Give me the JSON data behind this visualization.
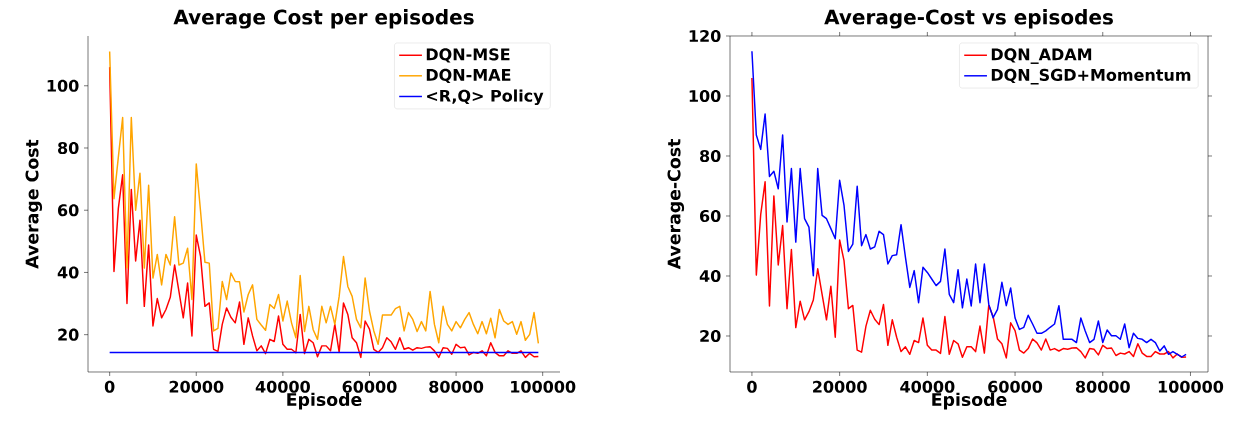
{
  "chart_data": [
    {
      "type": "line",
      "title": "Average Cost per episodes",
      "xlabel": "Episode",
      "ylabel": "Average Cost",
      "x": [
        0,
        1000,
        2000,
        3000,
        4000,
        5000,
        6000,
        7000,
        8000,
        9000,
        10000,
        11000,
        12000,
        13000,
        14000,
        15000,
        16000,
        17000,
        18000,
        19000,
        20000,
        21000,
        22000,
        23000,
        24000,
        25000,
        26000,
        27000,
        28000,
        29000,
        30000,
        31000,
        32000,
        33000,
        34000,
        35000,
        36000,
        37000,
        38000,
        39000,
        40000,
        41000,
        42000,
        43000,
        44000,
        45000,
        46000,
        47000,
        48000,
        49000,
        50000,
        51000,
        52000,
        53000,
        54000,
        55000,
        56000,
        57000,
        58000,
        59000,
        60000,
        61000,
        62000,
        63000,
        64000,
        65000,
        66000,
        67000,
        68000,
        69000,
        70000,
        71000,
        72000,
        73000,
        74000,
        75000,
        76000,
        77000,
        78000,
        79000,
        80000,
        81000,
        82000,
        83000,
        84000,
        85000,
        86000,
        87000,
        88000,
        89000,
        90000,
        91000,
        92000,
        93000,
        94000,
        95000,
        96000,
        97000,
        98000,
        99000
      ],
      "series": [
        {
          "name": "DQN-MSE",
          "color": "#ff0000",
          "values": [
            106,
            40.3,
            60.5,
            71.4,
            30,
            66.7,
            43.7,
            56.8,
            29.1,
            48.8,
            22.8,
            31.6,
            25.4,
            28.1,
            32,
            42.4,
            33.9,
            25.4,
            36.6,
            19.6,
            52,
            45.1,
            29.1,
            30.2,
            15.3,
            14.6,
            23.3,
            28.6,
            25.6,
            23.8,
            30.5,
            16.9,
            25.4,
            19.6,
            14.8,
            16.4,
            13.9,
            18.5,
            17.8,
            26,
            16.9,
            15.3,
            15.3,
            14.2,
            26.5,
            13.9,
            18.5,
            17.4,
            12.9,
            16.4,
            16.4,
            14.8,
            23.3,
            14.3,
            30.2,
            26.5,
            19,
            17.4,
            12.7,
            24.4,
            21.8,
            15.3,
            14.3,
            15.8,
            19,
            17.7,
            15.3,
            19,
            15.3,
            15.8,
            15,
            15.8,
            15.6,
            16,
            16.1,
            14.8,
            12.7,
            15.8,
            15.6,
            13.7,
            16.9,
            15.8,
            16,
            13.5,
            14.3,
            14,
            14.8,
            13.2,
            17.4,
            14.3,
            13.2,
            13.2,
            14.8,
            14,
            14,
            14.8,
            12.7,
            14,
            12.9,
            13
          ]
        },
        {
          "name": "DQN-MAE",
          "color": "#ffa500",
          "values": [
            111,
            63.7,
            77,
            89.8,
            41.4,
            89.8,
            60,
            71.9,
            41.4,
            68,
            38.2,
            45.8,
            36,
            45.8,
            42.4,
            57.9,
            42.4,
            43,
            47.8,
            31.3,
            74.9,
            59.5,
            43.3,
            43,
            21.2,
            22,
            37.1,
            31.3,
            39.8,
            37.1,
            37,
            27.3,
            32.9,
            36,
            24.9,
            23.1,
            21.4,
            29.7,
            28.4,
            32.9,
            24.4,
            30.8,
            23.8,
            19,
            39,
            21,
            29.1,
            21.6,
            18.5,
            29.1,
            23.8,
            29.1,
            23.3,
            32.3,
            45.1,
            35.5,
            32.3,
            24.9,
            22.2,
            38.2,
            27.6,
            21.2,
            16.9,
            26.3,
            26.3,
            26.3,
            28.4,
            29.1,
            21.2,
            27.1,
            24.9,
            21,
            24.2,
            21.2,
            33.9,
            23.3,
            17.4,
            29.1,
            23.3,
            21.2,
            24.2,
            22.2,
            24.9,
            27.1,
            23.3,
            20.3,
            24.2,
            20.3,
            25.3,
            19,
            28.1,
            24.4,
            23.3,
            24.2,
            20.1,
            24.2,
            18.2,
            20.1,
            27.1,
            17.2
          ]
        },
        {
          "name": "<R,Q> Policy",
          "color": "#0000ff",
          "x": [
            0,
            99000
          ],
          "values": [
            14.3,
            14.3
          ]
        }
      ],
      "xlim": [
        -5000,
        104000
      ],
      "ylim": [
        8,
        116
      ],
      "xticks": [
        0,
        20000,
        40000,
        60000,
        80000,
        100000
      ],
      "yticks": [
        20,
        40,
        60,
        80,
        100
      ],
      "legend": "top right",
      "grid": false
    },
    {
      "type": "line",
      "title": "Average-Cost vs episodes",
      "xlabel": "Episode",
      "ylabel": "Average-Cost",
      "x": [
        0,
        1000,
        2000,
        3000,
        4000,
        5000,
        6000,
        7000,
        8000,
        9000,
        10000,
        11000,
        12000,
        13000,
        14000,
        15000,
        16000,
        17000,
        18000,
        19000,
        20000,
        21000,
        22000,
        23000,
        24000,
        25000,
        26000,
        27000,
        28000,
        29000,
        30000,
        31000,
        32000,
        33000,
        34000,
        35000,
        36000,
        37000,
        38000,
        39000,
        40000,
        41000,
        42000,
        43000,
        44000,
        45000,
        46000,
        47000,
        48000,
        49000,
        50000,
        51000,
        52000,
        53000,
        54000,
        55000,
        56000,
        57000,
        58000,
        59000,
        60000,
        61000,
        62000,
        63000,
        64000,
        65000,
        66000,
        67000,
        68000,
        69000,
        70000,
        71000,
        72000,
        73000,
        74000,
        75000,
        76000,
        77000,
        78000,
        79000,
        80000,
        81000,
        82000,
        83000,
        84000,
        85000,
        86000,
        87000,
        88000,
        89000,
        90000,
        91000,
        92000,
        93000,
        94000,
        95000,
        96000,
        97000,
        98000,
        99000
      ],
      "series": [
        {
          "name": "DQN_ADAM",
          "color": "#ff0000",
          "values": [
            106,
            40.3,
            60.5,
            71.4,
            30,
            66.7,
            43.7,
            56.8,
            29.1,
            48.8,
            22.8,
            31.6,
            25.4,
            28.1,
            32,
            42.4,
            33.9,
            25.4,
            36.6,
            19.6,
            52,
            45.1,
            29.1,
            30.2,
            15.3,
            14.6,
            23.3,
            28.6,
            25.6,
            23.8,
            30.5,
            16.9,
            25.4,
            19.6,
            14.8,
            16.4,
            13.9,
            18.5,
            17.8,
            26,
            16.9,
            15.3,
            15.3,
            14.2,
            26.5,
            13.9,
            18.5,
            17.4,
            12.9,
            16.4,
            16.4,
            14.8,
            23.3,
            14.3,
            30.2,
            26.5,
            19,
            17.4,
            12.7,
            24.4,
            21.8,
            15.3,
            14.3,
            15.8,
            19,
            17.7,
            15.3,
            19,
            15.3,
            15.8,
            15,
            15.8,
            15.6,
            16,
            16.1,
            14.8,
            12.7,
            15.8,
            15.6,
            13.7,
            16.9,
            15.8,
            16,
            13.5,
            14.3,
            14,
            14.8,
            13.2,
            17.4,
            14.3,
            13.2,
            13.2,
            14.8,
            14,
            14,
            14.8,
            12.7,
            14,
            12.9,
            13
          ]
        },
        {
          "name": "DQN_SGD+Momentum",
          "color": "#0000ff",
          "values": [
            114.9,
            87,
            82.2,
            94,
            73.2,
            74.9,
            69.1,
            87,
            58,
            75.8,
            51.3,
            75.8,
            59.1,
            56.3,
            40.1,
            75.8,
            60.2,
            59.1,
            55.8,
            52.4,
            71.9,
            63.5,
            48.2,
            50.6,
            69.9,
            50.1,
            53.8,
            49,
            49.7,
            54.9,
            53.8,
            44,
            46.8,
            47.1,
            57.1,
            46.3,
            36.2,
            41.8,
            31.1,
            42.9,
            41.2,
            39,
            36.8,
            38.2,
            49,
            33.9,
            31.1,
            42.1,
            29.4,
            39,
            30,
            44,
            31.1,
            44,
            30.6,
            26.1,
            28.9,
            37.9,
            30.1,
            36,
            26,
            22.2,
            22.9,
            26.9,
            24,
            20.9,
            20.9,
            21.7,
            22.9,
            24,
            30.1,
            18.9,
            18.9,
            18.9,
            17.8,
            26,
            21.7,
            17.8,
            18.9,
            25,
            17.8,
            22,
            20.1,
            20.1,
            18.9,
            24,
            16.1,
            20.9,
            19.2,
            18.9,
            17.8,
            18.9,
            17.8,
            15,
            16.7,
            13.9,
            14.8,
            13.9,
            13,
            13.9
          ]
        }
      ],
      "xlim": [
        -5000,
        104000
      ],
      "ylim": [
        8,
        120
      ],
      "xticks": [
        0,
        20000,
        40000,
        60000,
        80000,
        100000
      ],
      "yticks": [
        20,
        40,
        60,
        80,
        100,
        120
      ],
      "legend": "top right",
      "grid": false
    }
  ]
}
